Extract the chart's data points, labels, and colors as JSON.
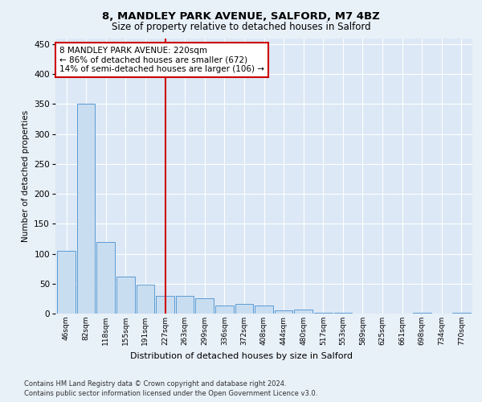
{
  "title1": "8, MANDLEY PARK AVENUE, SALFORD, M7 4BZ",
  "title2": "Size of property relative to detached houses in Salford",
  "xlabel": "Distribution of detached houses by size in Salford",
  "ylabel": "Number of detached properties",
  "categories": [
    "46sqm",
    "82sqm",
    "118sqm",
    "155sqm",
    "191sqm",
    "227sqm",
    "263sqm",
    "299sqm",
    "336sqm",
    "372sqm",
    "408sqm",
    "444sqm",
    "480sqm",
    "517sqm",
    "553sqm",
    "589sqm",
    "625sqm",
    "661sqm",
    "698sqm",
    "734sqm",
    "770sqm"
  ],
  "values": [
    105,
    350,
    120,
    62,
    49,
    30,
    29,
    25,
    13,
    16,
    14,
    5,
    7,
    1,
    1,
    0,
    0,
    0,
    1,
    0,
    1
  ],
  "bar_color": "#c9ddf0",
  "bar_edge_color": "#5b9bd5",
  "vline_color": "#cc0000",
  "annotation_line1": "8 MANDLEY PARK AVENUE: 220sqm",
  "annotation_line2": "← 86% of detached houses are smaller (672)",
  "annotation_line3": "14% of semi-detached houses are larger (106) →",
  "annotation_box_color": "#ffffff",
  "annotation_box_edge": "#cc0000",
  "footer1": "Contains HM Land Registry data © Crown copyright and database right 2024.",
  "footer2": "Contains public sector information licensed under the Open Government Licence v3.0.",
  "ylim": [
    0,
    460
  ],
  "yticks": [
    0,
    50,
    100,
    150,
    200,
    250,
    300,
    350,
    400,
    450
  ],
  "bg_color": "#e8f0f8",
  "plot_bg": "#dce8f5",
  "vline_pos": 5.0
}
